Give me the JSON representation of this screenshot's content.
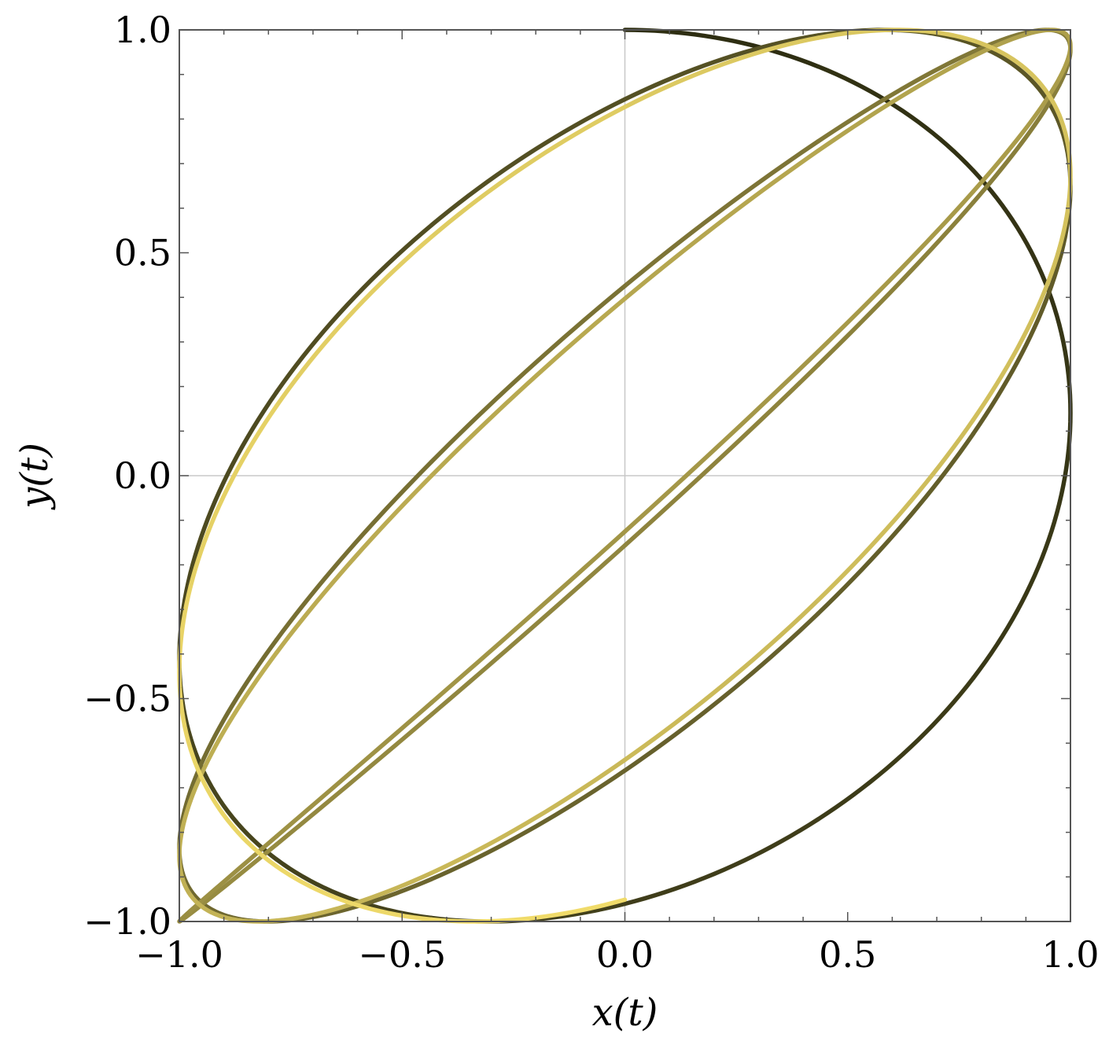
{
  "chart_data": {
    "type": "line",
    "title": "",
    "xlabel": "x(t)",
    "ylabel": "y(t)",
    "xlim": [
      -1.0,
      1.0
    ],
    "ylim": [
      -1.0,
      1.0
    ],
    "xticks": [
      -1.0,
      -0.5,
      0.0,
      0.5,
      1.0
    ],
    "yticks": [
      -1.0,
      -0.5,
      0.0,
      0.5,
      1.0
    ],
    "xtick_labels": [
      "−1.0",
      "−0.5",
      "0.0",
      "0.5",
      "1.0"
    ],
    "ytick_labels": [
      "−1.0",
      "−0.5",
      "0.0",
      "0.5",
      "1.0"
    ],
    "grid": false,
    "zero_lines": true,
    "curve": {
      "x_expr": "sin(t)",
      "y_expr": "cos(t - 0.9*pi*t/(10*pi))",
      "t_start": 0,
      "t_end": 31.4159,
      "color_start": "#2e2e12",
      "color_end": "#f0db6a"
    }
  }
}
